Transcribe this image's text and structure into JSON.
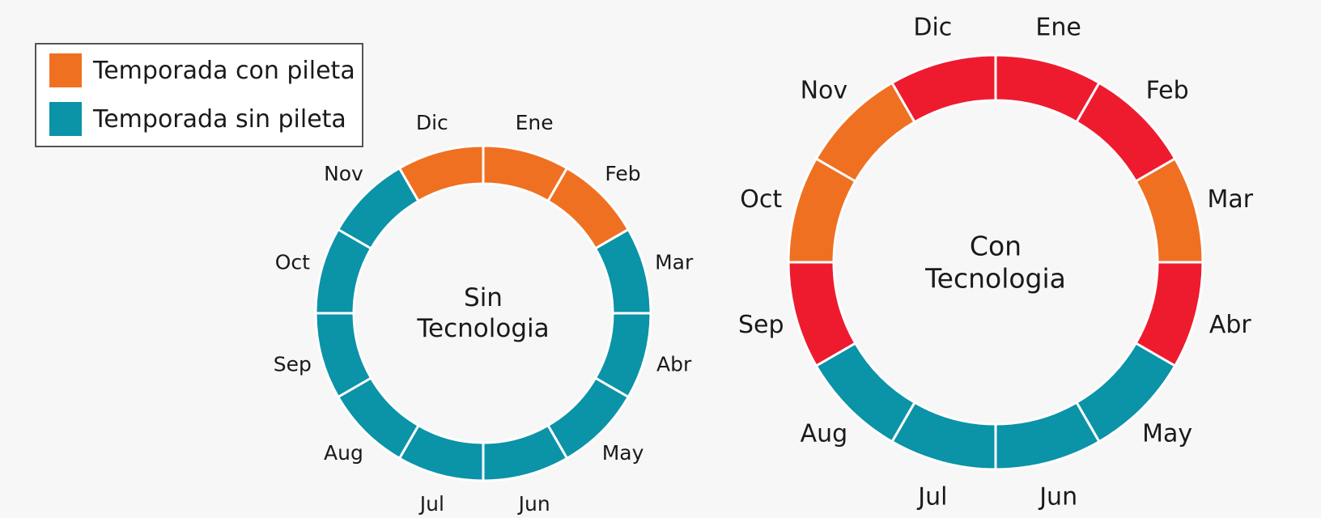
{
  "colors": {
    "con_pileta": "#f07022",
    "sin_pileta": "#0b93a8",
    "red": "#ee1b2e"
  },
  "legend": {
    "items": [
      {
        "label": "Temporada con pileta",
        "color": "#f07022"
      },
      {
        "label": "Temporada sin pileta",
        "color": "#0b93a8"
      }
    ]
  },
  "chart_data": [
    {
      "type": "pie",
      "variant": "donut",
      "title": "Sin Tecnologia",
      "title_lines": [
        "Sin",
        "Tecnologia"
      ],
      "categories": [
        "Ene",
        "Feb",
        "Mar",
        "Abr",
        "May",
        "Jun",
        "Jul",
        "Aug",
        "Sep",
        "Oct",
        "Nov",
        "Dic"
      ],
      "values": [
        1,
        1,
        1,
        1,
        1,
        1,
        1,
        1,
        1,
        1,
        1,
        1
      ],
      "slice_colors": [
        "#f07022",
        "#f07022",
        "#0b93a8",
        "#0b93a8",
        "#0b93a8",
        "#0b93a8",
        "#0b93a8",
        "#0b93a8",
        "#0b93a8",
        "#0b93a8",
        "#0b93a8",
        "#f07022"
      ]
    },
    {
      "type": "pie",
      "variant": "donut",
      "title": "Con Tecnologia",
      "title_lines": [
        "Con",
        "Tecnologia"
      ],
      "categories": [
        "Ene",
        "Feb",
        "Mar",
        "Abr",
        "May",
        "Jun",
        "Jul",
        "Aug",
        "Sep",
        "Oct",
        "Nov",
        "Dic"
      ],
      "values": [
        1,
        1,
        1,
        1,
        1,
        1,
        1,
        1,
        1,
        1,
        1,
        1
      ],
      "slice_colors": [
        "#ee1b2e",
        "#ee1b2e",
        "#f07022",
        "#ee1b2e",
        "#0b93a8",
        "#0b93a8",
        "#0b93a8",
        "#0b93a8",
        "#ee1b2e",
        "#f07022",
        "#f07022",
        "#ee1b2e"
      ]
    }
  ]
}
